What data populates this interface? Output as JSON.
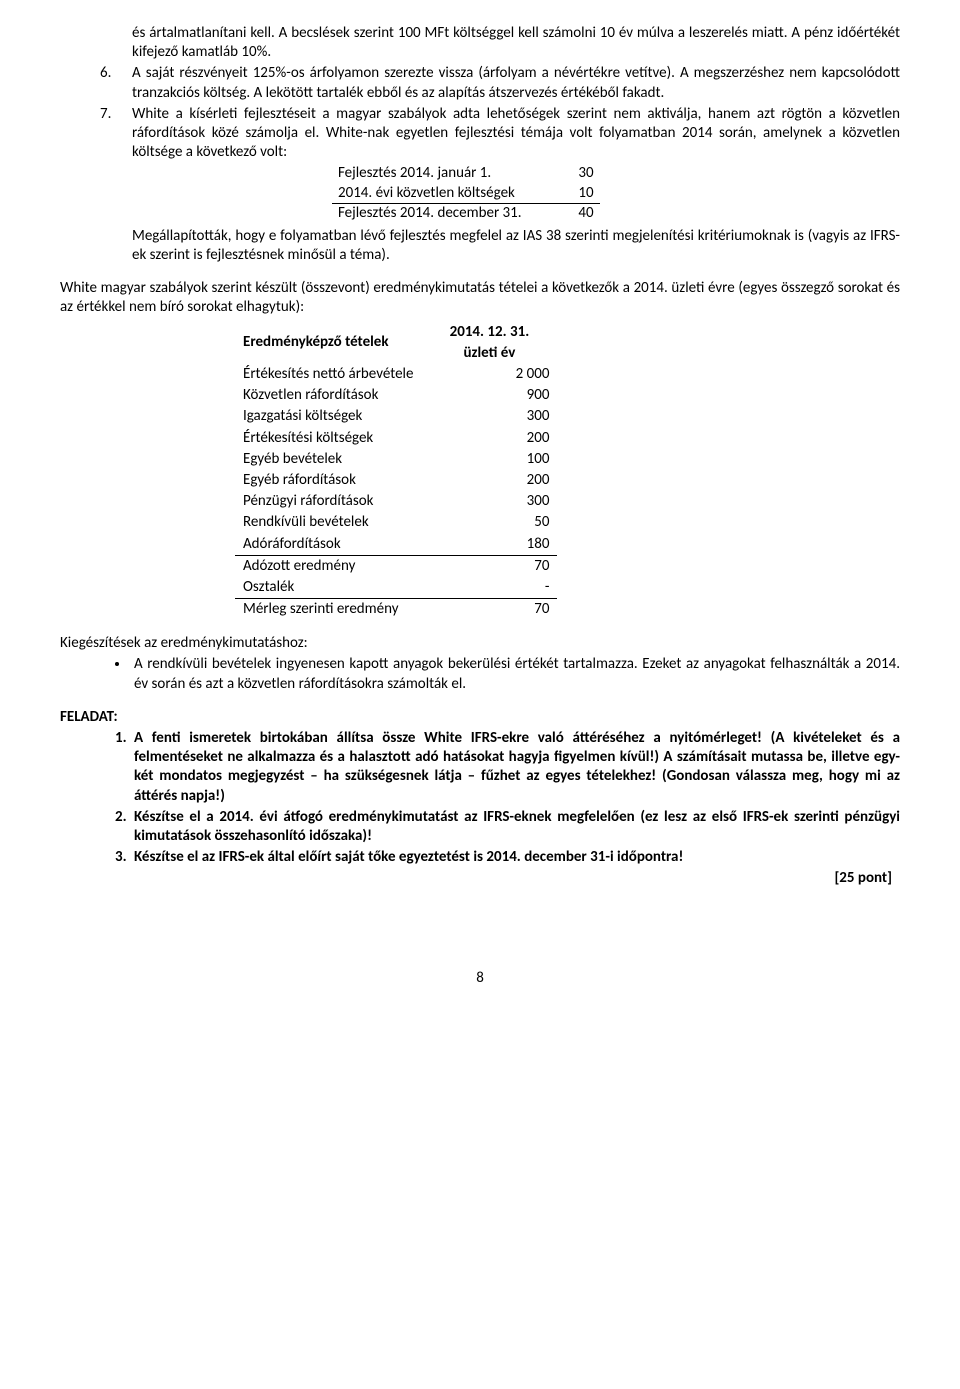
{
  "intro": {
    "p1": "és ártalmatlanítani kell. A becslések szerint 100 MFt költséggel kell számolni 10 év múlva a leszerelés miatt. A pénz időértékét kifejező kamatláb 10%.",
    "item6": "A saját részvényeit 125%-os árfolyamon szerezte vissza (árfolyam a névértékre vetítve). A megszerzéshez nem kapcsolódott tranzakciós költség. A lekötött tartalék ebből és az alapítás átszervezés értékéből fakadt.",
    "item7a": "White a kísérleti fejlesztéseit a magyar szabályok adta lehetőségek szerint nem aktiválja, hanem azt rögtön a közvetlen ráfordítások közé számolja el. White-nak egyetlen fejlesztési témája volt folyamatban 2014 során, amelynek a közvetlen költsége a következő volt:",
    "item7b": "Megállapították, hogy e folyamatban lévő fejlesztés megfelel az IAS 38 szerinti megjelenítési kritériumoknak is (vagyis az IFRS-ek szerint is fejlesztésnek minősül a téma).",
    "num6": "6.",
    "num7": "7."
  },
  "devtable": {
    "r1l": "Fejlesztés 2014. január 1.",
    "r1v": "30",
    "r2l": "2014. évi közvetlen költségek",
    "r2v": "10",
    "r3l": "Fejlesztés 2014. december 31.",
    "r3v": "40"
  },
  "mid": {
    "p1": "White magyar szabályok szerint készült (összevont) eredménykimutatás tételei a következők a 2014. üzleti évre (egyes összegző sorokat és az értékkel nem bíró sorokat elhagytuk):"
  },
  "rt": {
    "h1": "Eredményképző tételek",
    "h2a": "2014. 12. 31.",
    "h2b": "üzleti év",
    "rows": [
      {
        "l": "Értékesítés nettó árbevétele",
        "v": "2 000"
      },
      {
        "l": "Közvetlen ráfordítások",
        "v": "900"
      },
      {
        "l": "Igazgatási költségek",
        "v": "300"
      },
      {
        "l": "Értékesítési költségek",
        "v": "200"
      },
      {
        "l": "Egyéb bevételek",
        "v": "100"
      },
      {
        "l": "Egyéb ráfordítások",
        "v": "200"
      },
      {
        "l": "Pénzügyi ráfordítások",
        "v": "300"
      },
      {
        "l": "Rendkívüli bevételek",
        "v": "50"
      },
      {
        "l": "Adóráfordítások",
        "v": "180"
      },
      {
        "l": "Adózott eredmény",
        "v": "70"
      },
      {
        "l": "Osztalék",
        "v": "-"
      },
      {
        "l": "Mérleg szerinti eredmény",
        "v": "70"
      }
    ]
  },
  "supp": {
    "heading": "Kiegészítések az eredménykimutatáshoz:",
    "b1": "A rendkívüli bevételek ingyenesen kapott anyagok bekerülési értékét tartalmazza. Ezeket az anyagokat felhasználták a 2014. év során és azt a közvetlen ráfordításokra számolták el."
  },
  "task": {
    "heading": "FELADAT:",
    "t1": "A fenti ismeretek birtokában állítsa össze White IFRS-ekre való áttéréséhez a nyitómérleget! (A kivételeket és a felmentéseket ne alkalmazza és a halasztott adó hatásokat hagyja figyelmen kívül!) A számításait mutassa be, illetve egy-két mondatos megjegyzést – ha szükségesnek látja – fűzhet az egyes tételekhez! (Gondosan válassza meg, hogy mi az áttérés napja!)",
    "t2": "Készítse el a 2014. évi átfogó eredménykimutatást az IFRS-eknek megfelelően (ez lesz az első IFRS-ek szerinti pénzügyi kimutatások összehasonlító időszaka)!",
    "t3": "Készítse el az IFRS-ek által előírt saját tőke egyeztetést is 2014. december 31-i időpontra!",
    "points": "[25 pont]"
  },
  "page": "8"
}
